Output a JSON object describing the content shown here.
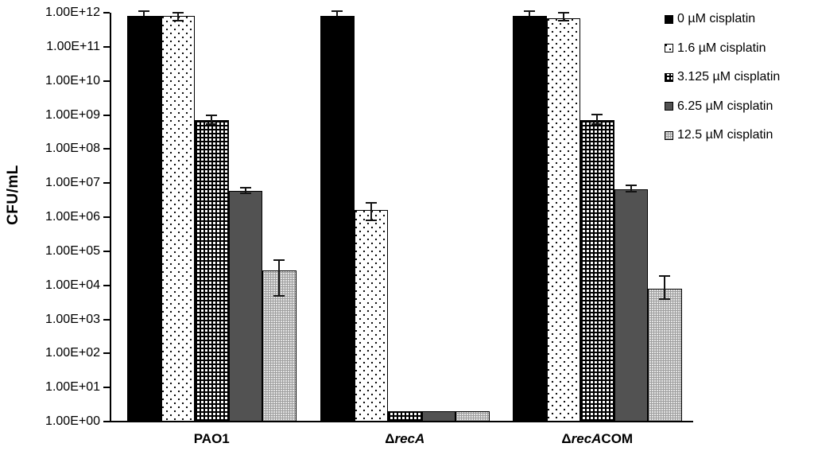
{
  "chart_data": {
    "type": "bar",
    "scale": "log",
    "title": "",
    "ylabel": "CFU/mL",
    "xlabel": "",
    "ylim": [
      1,
      1000000000000.0
    ],
    "grid": false,
    "legend_position": "top-right",
    "y_ticks": [
      "1.00E+12",
      "1.00E+11",
      "1.00E+10",
      "1.00E+09",
      "1.00E+08",
      "1.00E+07",
      "1.00E+06",
      "1.00E+05",
      "1.00E+04",
      "1.00E+03",
      "1.00E+02",
      "1.00E+01",
      "1.00E+00"
    ],
    "categories": [
      "PAO1",
      "ΔrecA",
      "ΔrecACOM"
    ],
    "category_parts": [
      [
        {
          "text": "PAO1",
          "italic": false
        }
      ],
      [
        {
          "text": "Δ",
          "italic": false
        },
        {
          "text": "recA",
          "italic": true
        }
      ],
      [
        {
          "text": "Δ",
          "italic": false
        },
        {
          "text": "recA",
          "italic": true
        },
        {
          "text": "COM",
          "italic": false
        }
      ]
    ],
    "series": [
      {
        "name": "0 µM cisplatin",
        "pattern": "solid-black",
        "values": [
          800000000000.0,
          800000000000.0,
          800000000000.0
        ],
        "err_hi": [
          1100000000000.0,
          1100000000000.0,
          1100000000000.0
        ],
        "err_lo": [
          800000000000.0,
          800000000000.0,
          800000000000.0
        ]
      },
      {
        "name": "1.6 µM cisplatin",
        "pattern": "dots",
        "values": [
          800000000000.0,
          1600000.0,
          700000000000.0
        ],
        "err_hi": [
          1000000000000.0,
          2600000.0,
          1000000000000.0
        ],
        "err_lo": [
          600000000000.0,
          800000.0,
          600000000000.0
        ]
      },
      {
        "name": "3.125 µM cisplatin",
        "pattern": "check",
        "values": [
          700000000.0,
          2,
          700000000.0
        ],
        "err_hi": [
          950000000.0,
          2,
          1050000000.0
        ],
        "err_lo": [
          550000000.0,
          2,
          550000000.0
        ]
      },
      {
        "name": "6.25 µM cisplatin",
        "pattern": "dark-gray",
        "values": [
          6000000.0,
          2,
          6500000.0
        ],
        "err_hi": [
          7500000.0,
          2,
          8500000.0
        ],
        "err_lo": [
          5000000.0,
          2,
          5500000.0
        ]
      },
      {
        "name": "12.5 µM cisplatin",
        "pattern": "fine-grid",
        "values": [
          28000.0,
          2,
          8000.0
        ],
        "err_hi": [
          55000.0,
          2,
          19000.0
        ],
        "err_lo": [
          5000.0,
          2,
          4000.0
        ]
      }
    ],
    "colors": {
      "bar_black": "#000000",
      "bar_dark_gray": "#525252",
      "bar_light_gray_fill": "#e4e4e4",
      "axis": "#000000",
      "text": "#000000"
    }
  }
}
